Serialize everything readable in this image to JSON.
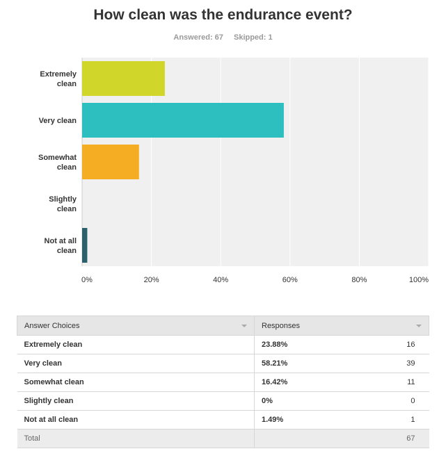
{
  "title": "How clean was the endurance event?",
  "stats": {
    "answered": "Answered: 67",
    "skipped": "Skipped: 1"
  },
  "chart_data": {
    "type": "bar",
    "orientation": "horizontal",
    "title": "How clean was the endurance event?",
    "categories": [
      "Extremely clean",
      "Very clean",
      "Somewhat clean",
      "Slightly clean",
      "Not at all clean"
    ],
    "category_labels": [
      [
        "Extremely",
        "clean"
      ],
      [
        "Very clean"
      ],
      [
        "Somewhat",
        "clean"
      ],
      [
        "Slightly",
        "clean"
      ],
      [
        "Not at all",
        "clean"
      ]
    ],
    "values": [
      23.88,
      58.21,
      16.42,
      0,
      1.49
    ],
    "colors": [
      "#d1d62a",
      "#2dbfbf",
      "#f5ae23",
      "#9e9e9e",
      "#2b5f6b"
    ],
    "xlim": [
      0,
      100
    ],
    "xticks": [
      0,
      20,
      40,
      60,
      80,
      100
    ],
    "xtick_labels": [
      "0%",
      "20%",
      "40%",
      "60%",
      "80%",
      "100%"
    ],
    "grid": true,
    "plot_background": "#f0f0f0",
    "legend": "none"
  },
  "table": {
    "headers": {
      "choice": "Answer Choices",
      "responses": "Responses"
    },
    "rows": [
      {
        "choice": "Extremely clean",
        "percent": "23.88%",
        "count": "16"
      },
      {
        "choice": "Very clean",
        "percent": "58.21%",
        "count": "39"
      },
      {
        "choice": "Somewhat clean",
        "percent": "16.42%",
        "count": "11"
      },
      {
        "choice": "Slightly clean",
        "percent": "0%",
        "count": "0"
      },
      {
        "choice": "Not at all clean",
        "percent": "1.49%",
        "count": "1"
      }
    ],
    "total": {
      "label": "Total",
      "count": "67"
    }
  }
}
